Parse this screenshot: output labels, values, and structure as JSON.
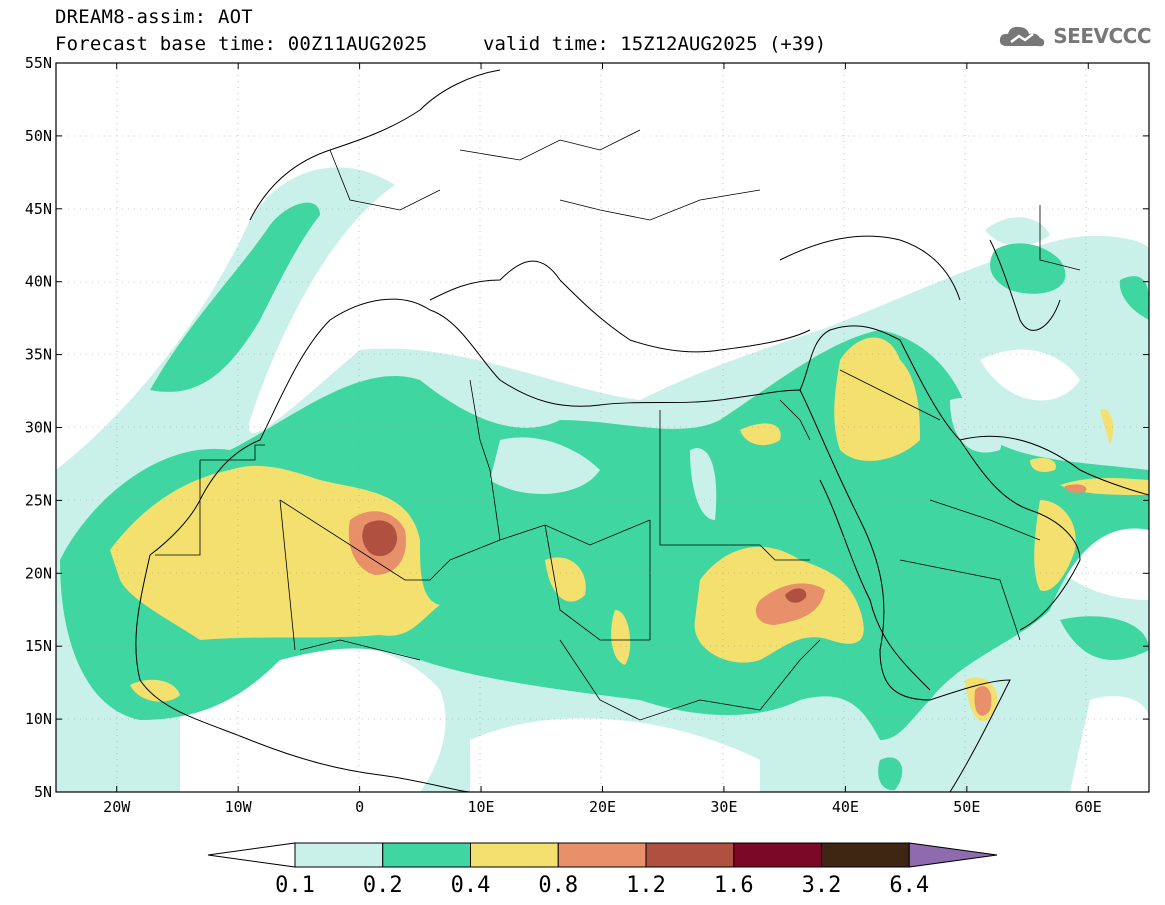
{
  "header": {
    "title": "DREAM8-assim: AOT",
    "base_time": "Forecast base time: 00Z11AUG2025",
    "valid_time": "valid time: 15Z12AUG2025 (+39)",
    "logo_text": "SEEVCCC"
  },
  "map": {
    "lon_range": [
      -25,
      65
    ],
    "lat_range": [
      5,
      55
    ],
    "lat_labels": [
      "55N",
      "50N",
      "45N",
      "40N",
      "35N",
      "30N",
      "25N",
      "20N",
      "15N",
      "10N",
      "5N"
    ],
    "lon_labels": [
      "20W",
      "10W",
      "0",
      "10E",
      "20E",
      "30E",
      "40E",
      "50E",
      "60E"
    ]
  },
  "colorbar": {
    "labels": [
      "0.1",
      "0.2",
      "0.4",
      "0.8",
      "1.2",
      "1.6",
      "3.2",
      "6.4"
    ],
    "colors": [
      "#c9f1ea",
      "#40d6a1",
      "#f4e06e",
      "#e8906a",
      "#b05040",
      "#7a0826",
      "#3e2514",
      "#8e6aae"
    ],
    "under_color": "#ffffff"
  }
}
